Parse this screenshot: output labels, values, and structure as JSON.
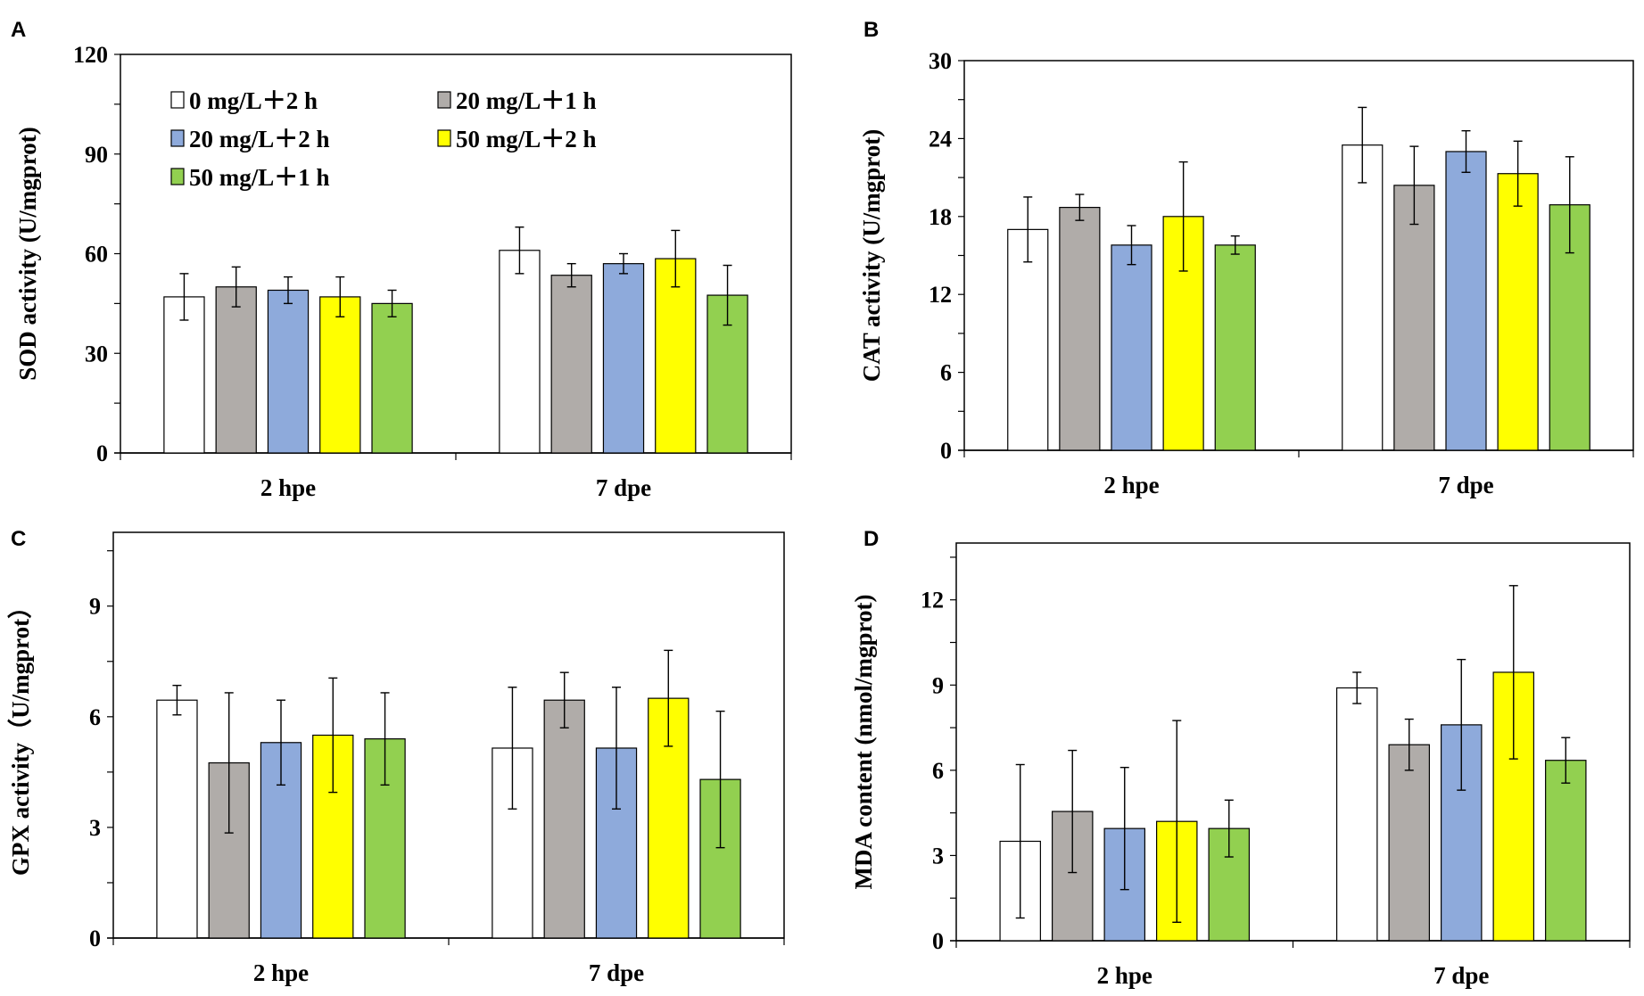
{
  "legend": [
    "0 mg/L＋2 h",
    "20 mg/L＋1 h",
    "20 mg/L＋2 h",
    "50 mg/L＋2 h",
    "50 mg/L＋1 h"
  ],
  "colors": [
    "#ffffff",
    "#b0aca9",
    "#8eaadb",
    "#ffff00",
    "#92d050"
  ],
  "chart_data": [
    {
      "panel": "A",
      "type": "bar",
      "ylabel": "SOD activity (U/mgprot)",
      "ylim": [
        0,
        120
      ],
      "yticks": [
        0,
        30,
        60,
        90,
        120
      ],
      "minor_step": 15,
      "categories": [
        "2 hpe",
        "7 dpe"
      ],
      "legend_placement": "top-left",
      "series": [
        {
          "name": "0 mg/L＋2 h",
          "values": [
            47,
            61
          ],
          "errors": [
            7,
            7
          ]
        },
        {
          "name": "20 mg/L＋1 h",
          "values": [
            50,
            53.5
          ],
          "errors": [
            6,
            3.5
          ]
        },
        {
          "name": "20 mg/L＋2 h",
          "values": [
            49,
            57
          ],
          "errors": [
            4,
            3
          ]
        },
        {
          "name": "50 mg/L＋2 h",
          "values": [
            47,
            58.5
          ],
          "errors": [
            6,
            8.5
          ]
        },
        {
          "name": "50 mg/L＋1 h",
          "values": [
            45,
            47.5
          ],
          "errors": [
            4,
            9
          ]
        }
      ]
    },
    {
      "panel": "B",
      "type": "bar",
      "ylabel": "CAT activity (U/mgprot)",
      "ylim": [
        0,
        30
      ],
      "yticks": [
        0,
        6,
        12,
        18,
        24,
        30
      ],
      "minor_step": 3,
      "categories": [
        "2 hpe",
        "7 dpe"
      ],
      "series": [
        {
          "name": "0 mg/L＋2 h",
          "values": [
            17,
            23.5
          ],
          "errors": [
            2.5,
            2.9
          ]
        },
        {
          "name": "20 mg/L＋1 h",
          "values": [
            18.7,
            20.4
          ],
          "errors": [
            1,
            3
          ]
        },
        {
          "name": "20 mg/L＋2 h",
          "values": [
            15.8,
            23
          ],
          "errors": [
            1.5,
            1.6
          ]
        },
        {
          "name": "50 mg/L＋2 h",
          "values": [
            18,
            21.3
          ],
          "errors": [
            4.2,
            2.5
          ]
        },
        {
          "name": "50 mg/L＋1 h",
          "values": [
            15.8,
            18.9
          ],
          "errors": [
            0.7,
            3.7
          ]
        }
      ]
    },
    {
      "panel": "C",
      "type": "bar",
      "ylabel": "GPX activity（U/mgprot）",
      "ylim": [
        0,
        11
      ],
      "yticks": [
        0,
        3,
        6,
        9
      ],
      "minor_step": 1.5,
      "categories": [
        "2 hpe",
        "7 dpe"
      ],
      "series": [
        {
          "name": "0 mg/L＋2 h",
          "values": [
            6.45,
            5.15
          ],
          "errors": [
            0.4,
            1.65
          ]
        },
        {
          "name": "20 mg/L＋1 h",
          "values": [
            4.75,
            6.45
          ],
          "errors": [
            1.9,
            0.75
          ]
        },
        {
          "name": "20 mg/L＋2 h",
          "values": [
            5.3,
            5.15
          ],
          "errors": [
            1.15,
            1.65
          ]
        },
        {
          "name": "50 mg/L＋2 h",
          "values": [
            5.5,
            6.5
          ],
          "errors": [
            1.55,
            1.3
          ]
        },
        {
          "name": "50 mg/L＋1 h",
          "values": [
            5.4,
            4.3
          ],
          "errors": [
            1.25,
            1.85
          ]
        }
      ]
    },
    {
      "panel": "D",
      "type": "bar",
      "ylabel": "MDA content (nmol/mgprot)",
      "ylim": [
        0,
        14
      ],
      "yticks": [
        0,
        3,
        6,
        9,
        12
      ],
      "minor_step": 1.5,
      "categories": [
        "2 hpe",
        "7 dpe"
      ],
      "series": [
        {
          "name": "0 mg/L＋2 h",
          "values": [
            3.5,
            8.9
          ],
          "errors": [
            2.7,
            0.55
          ]
        },
        {
          "name": "20 mg/L＋1 h",
          "values": [
            4.55,
            6.9
          ],
          "errors": [
            2.15,
            0.9
          ]
        },
        {
          "name": "20 mg/L＋2 h",
          "values": [
            3.95,
            7.6
          ],
          "errors": [
            2.15,
            2.3
          ]
        },
        {
          "name": "50 mg/L＋2 h",
          "values": [
            4.2,
            9.45
          ],
          "errors": [
            3.55,
            3.05
          ]
        },
        {
          "name": "50 mg/L＋1 h",
          "values": [
            3.95,
            6.35
          ],
          "errors": [
            1.0,
            0.8
          ]
        }
      ]
    }
  ]
}
